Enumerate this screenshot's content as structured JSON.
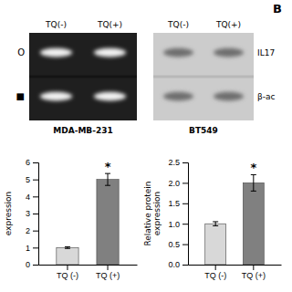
{
  "chart_data": [
    {
      "type": "image",
      "categories": [
        "TQ(-)",
        "TQ(+)"
      ],
      "annotations": [
        "O",
        "■"
      ],
      "xlabel": "MDA-MB-231"
    },
    {
      "type": "image",
      "title": "B",
      "categories": [
        "TQ(-)",
        "TQ(+)"
      ],
      "annotations": [
        "IL17",
        "β-ac"
      ],
      "xlabel": "BT549"
    },
    {
      "type": "bar",
      "categories": [
        "TQ (-)",
        "TQ (+)"
      ],
      "values": [
        1.0,
        5.0
      ],
      "errors": [
        0.05,
        0.35
      ],
      "colors": [
        "#d8d8d8",
        "#808080"
      ],
      "ylabel": "expression",
      "ylim": [
        0,
        6
      ],
      "yticks": [
        0,
        1,
        2,
        3,
        4,
        5,
        6
      ],
      "annotations": [
        "*"
      ]
    },
    {
      "type": "bar",
      "categories": [
        "TQ (-)",
        "TQ (+)"
      ],
      "values": [
        1.0,
        2.0
      ],
      "errors": [
        0.05,
        0.2
      ],
      "colors": [
        "#d8d8d8",
        "#808080"
      ],
      "ylabel": "Relative protein\nexpression",
      "ylim": [
        0,
        2.5
      ],
      "yticks": [
        {
          "value": 0,
          "label": "0.0"
        },
        0.5,
        {
          "value": 1.0,
          "label": "1.0"
        },
        1.5,
        {
          "value": 2.0,
          "label": "2.0"
        },
        {
          "value": 2.5,
          "label": "2.5"
        }
      ],
      "annotations": [
        "*"
      ]
    }
  ]
}
